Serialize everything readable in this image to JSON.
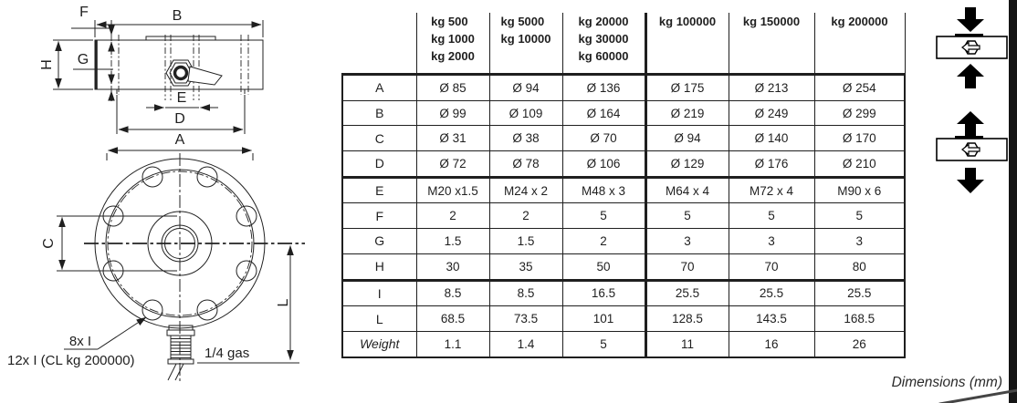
{
  "drawing": {
    "labels": {
      "A": "A",
      "B": "B",
      "C": "C",
      "D": "D",
      "E": "E",
      "F": "F",
      "G": "G",
      "H": "H",
      "L": "L"
    },
    "front_label_A": "A",
    "annotations": {
      "holes_note_1": "8x I",
      "holes_note_2": "12x I (CL kg 200000)",
      "thread_note": "1/4 gas"
    }
  },
  "table": {
    "capacity_columns": [
      {
        "lines": [
          "kg 500",
          "kg 1000",
          "kg 2000"
        ]
      },
      {
        "lines": [
          "kg 5000",
          "kg 10000"
        ]
      },
      {
        "lines": [
          "kg 20000",
          "kg 30000",
          "kg 60000"
        ]
      },
      {
        "lines": [
          "kg 100000"
        ]
      },
      {
        "lines": [
          "kg 150000"
        ]
      },
      {
        "lines": [
          "kg 200000"
        ]
      }
    ],
    "rows": [
      {
        "label": "A",
        "values": [
          "Ø 85",
          "Ø 94",
          "Ø 136",
          "Ø 175",
          "Ø 213",
          "Ø 254"
        ]
      },
      {
        "label": "B",
        "values": [
          "Ø 99",
          "Ø 109",
          "Ø 164",
          "Ø 219",
          "Ø 249",
          "Ø 299"
        ]
      },
      {
        "label": "C",
        "values": [
          "Ø 31",
          "Ø 38",
          "Ø 70",
          "Ø 94",
          "Ø 140",
          "Ø 170"
        ]
      },
      {
        "label": "D",
        "values": [
          "Ø 72",
          "Ø 78",
          "Ø 106",
          "Ø 129",
          "Ø 176",
          "Ø 210"
        ]
      },
      {
        "label": "E",
        "values": [
          "M20 x1.5",
          "M24 x 2",
          "M48 x 3",
          "M64 x 4",
          "M72 x 4",
          "M90 x 6"
        ]
      },
      {
        "label": "F",
        "values": [
          "2",
          "2",
          "5",
          "5",
          "5",
          "5"
        ]
      },
      {
        "label": "G",
        "values": [
          "1.5",
          "1.5",
          "2",
          "3",
          "3",
          "3"
        ]
      },
      {
        "label": "H",
        "values": [
          "30",
          "35",
          "50",
          "70",
          "70",
          "80"
        ]
      },
      {
        "label": "I",
        "values": [
          "8.5",
          "8.5",
          "16.5",
          "25.5",
          "25.5",
          "25.5"
        ]
      },
      {
        "label": "L",
        "values": [
          "68.5",
          "73.5",
          "101",
          "128.5",
          "143.5",
          "168.5"
        ]
      },
      {
        "label": "Weight",
        "values": [
          "1.1",
          "1.4",
          "5",
          "11",
          "16",
          "26"
        ]
      }
    ]
  },
  "footer": {
    "note": "Dimensions (mm)"
  },
  "colors": {
    "ink": "#1f1f1f",
    "scan_edge": "#151515"
  }
}
